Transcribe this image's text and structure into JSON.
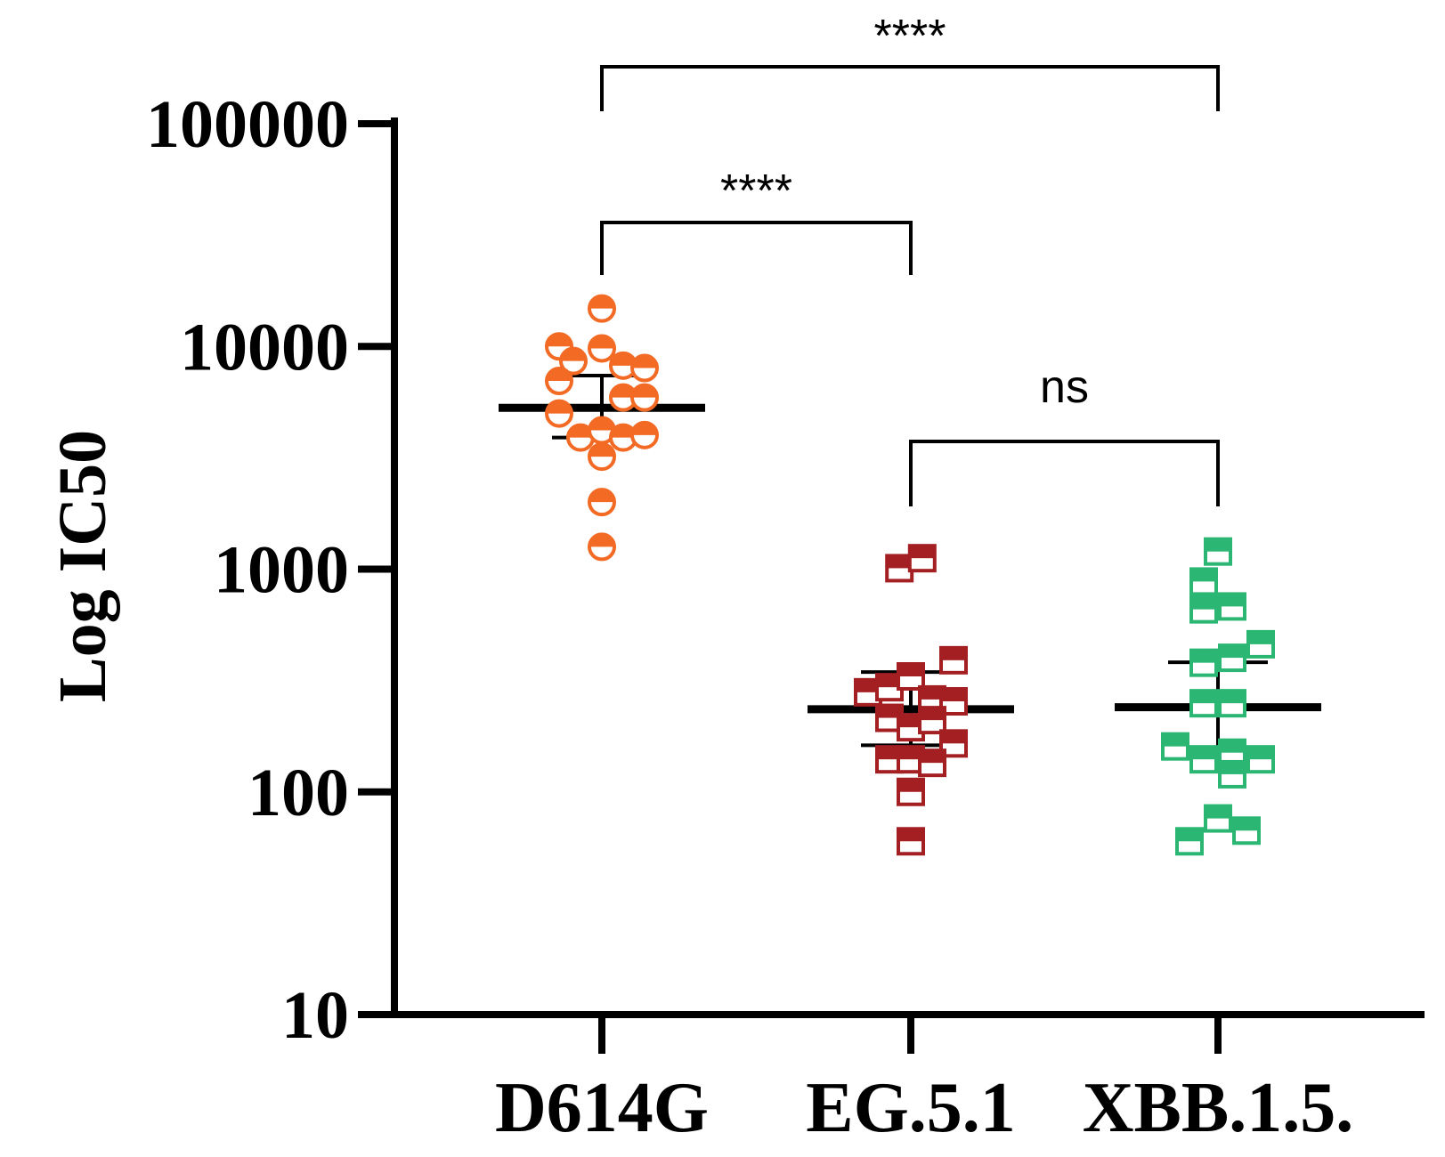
{
  "chart_data": {
    "type": "scatter",
    "ylabel": "Log IC50",
    "xlabel": "",
    "yscale": "log",
    "ylim": [
      10,
      100000
    ],
    "yticks": [
      "10",
      "100",
      "1000",
      "10000",
      "100000"
    ],
    "categories": [
      "D614G",
      "EG.5.1",
      "XBB.1.5."
    ],
    "series": [
      {
        "category": "D614G",
        "color": "#F26A24",
        "marker": "half-filled-circle",
        "summary": {
          "center": 5300,
          "lower": 3900,
          "upper": 7400
        },
        "points": [
          {
            "jitter": 0,
            "y": 14800
          },
          {
            "jitter": -3,
            "y": 10000
          },
          {
            "jitter": -2,
            "y": 8600
          },
          {
            "jitter": 0,
            "y": 9800
          },
          {
            "jitter": 1.5,
            "y": 8200
          },
          {
            "jitter": 3,
            "y": 8000
          },
          {
            "jitter": -3,
            "y": 7000
          },
          {
            "jitter": 1.5,
            "y": 5900
          },
          {
            "jitter": 3,
            "y": 5900
          },
          {
            "jitter": -3,
            "y": 5000
          },
          {
            "jitter": -1.5,
            "y": 3900
          },
          {
            "jitter": 0,
            "y": 4200
          },
          {
            "jitter": 1.5,
            "y": 3900
          },
          {
            "jitter": 3,
            "y": 4000
          },
          {
            "jitter": 0,
            "y": 3200
          },
          {
            "jitter": 0,
            "y": 2000
          },
          {
            "jitter": 0,
            "y": 1260
          }
        ]
      },
      {
        "category": "EG.5.1",
        "color": "#A31F22",
        "marker": "half-filled-square",
        "summary": {
          "center": 235,
          "lower": 162,
          "upper": 345
        },
        "points": [
          {
            "jitter": -0.8,
            "y": 1010
          },
          {
            "jitter": 0.8,
            "y": 1120
          },
          {
            "jitter": -3,
            "y": 280
          },
          {
            "jitter": -1.5,
            "y": 295
          },
          {
            "jitter": 0,
            "y": 330
          },
          {
            "jitter": 1.5,
            "y": 260
          },
          {
            "jitter": 3,
            "y": 390
          },
          {
            "jitter": 3,
            "y": 255
          },
          {
            "jitter": -1.5,
            "y": 215
          },
          {
            "jitter": 0,
            "y": 195
          },
          {
            "jitter": 1.5,
            "y": 210
          },
          {
            "jitter": 3,
            "y": 165
          },
          {
            "jitter": -1.5,
            "y": 140
          },
          {
            "jitter": 0,
            "y": 140
          },
          {
            "jitter": 1.5,
            "y": 135
          },
          {
            "jitter": 0,
            "y": 100
          },
          {
            "jitter": 0,
            "y": 60
          }
        ]
      },
      {
        "category": "XBB.1.5.",
        "color": "#2BB673",
        "marker": "half-filled-square",
        "summary": {
          "center": 240,
          "lower": 148,
          "upper": 382
        },
        "points": [
          {
            "jitter": 0,
            "y": 1200
          },
          {
            "jitter": -1,
            "y": 880
          },
          {
            "jitter": -1,
            "y": 660
          },
          {
            "jitter": 1,
            "y": 680
          },
          {
            "jitter": 3,
            "y": 460
          },
          {
            "jitter": -1,
            "y": 380
          },
          {
            "jitter": 1,
            "y": 400
          },
          {
            "jitter": -1,
            "y": 250
          },
          {
            "jitter": 1,
            "y": 250
          },
          {
            "jitter": -3,
            "y": 160
          },
          {
            "jitter": -1,
            "y": 140
          },
          {
            "jitter": 1,
            "y": 150
          },
          {
            "jitter": 1,
            "y": 120
          },
          {
            "jitter": 3,
            "y": 140
          },
          {
            "jitter": 0,
            "y": 76
          },
          {
            "jitter": 2,
            "y": 67
          },
          {
            "jitter": -2,
            "y": 60
          }
        ]
      }
    ],
    "comparisons": [
      {
        "from": "D614G",
        "to": "XBB.1.5.",
        "label": "****"
      },
      {
        "from": "D614G",
        "to": "EG.5.1",
        "label": "****"
      },
      {
        "from": "EG.5.1",
        "to": "XBB.1.5.",
        "label": "ns"
      }
    ]
  }
}
